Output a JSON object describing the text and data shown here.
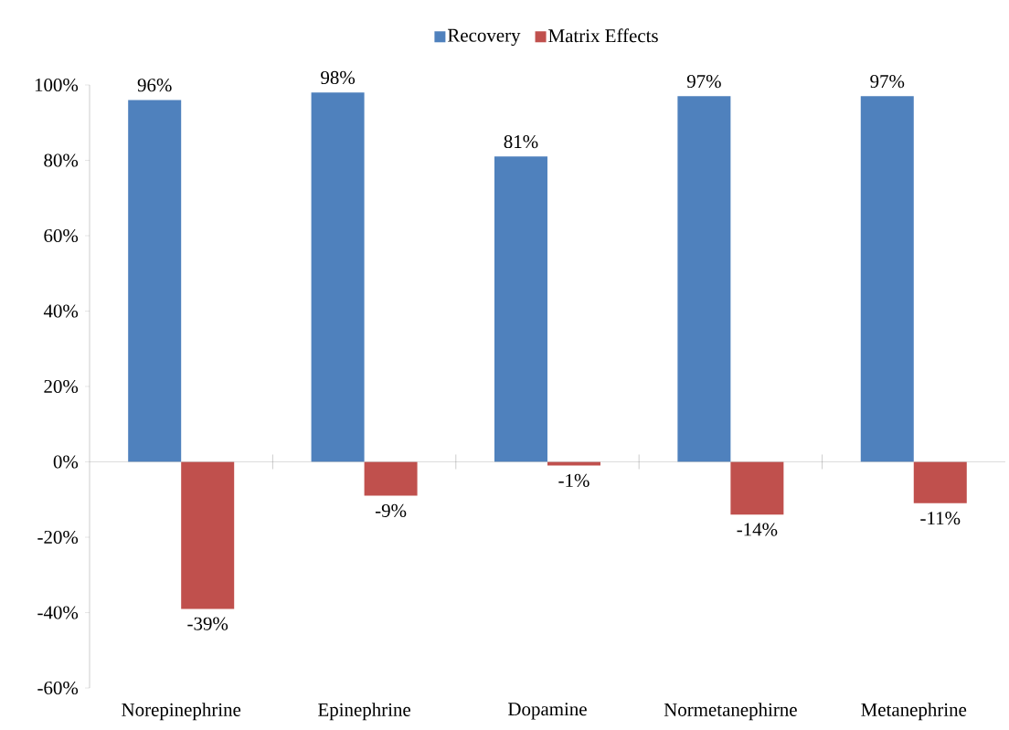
{
  "chart_data": {
    "type": "bar",
    "categories": [
      "Norepinephrine",
      "Epinephrine",
      "Dopamine",
      "Normetanephirne",
      "Metanephrine"
    ],
    "series": [
      {
        "name": "Recovery",
        "color": "#4f81bd",
        "values": [
          96,
          98,
          81,
          97,
          97
        ],
        "value_labels": [
          "96%",
          "98%",
          "81%",
          "97%",
          "97%"
        ]
      },
      {
        "name": "Matrix Effects",
        "color": "#c0504d",
        "values": [
          -39,
          -9,
          -1,
          -14,
          -11
        ],
        "value_labels": [
          "-39%",
          "-9%",
          "-1%",
          "-14%",
          "-11%"
        ]
      }
    ],
    "ylim": [
      -60,
      100
    ],
    "yticks": [
      {
        "value": -60,
        "label": "-60%"
      },
      {
        "value": -40,
        "label": "-40%"
      },
      {
        "value": -20,
        "label": "-20%"
      },
      {
        "value": 0,
        "label": "0%"
      },
      {
        "value": 20,
        "label": "20%"
      },
      {
        "value": 40,
        "label": "40%"
      },
      {
        "value": 60,
        "label": "60%"
      },
      {
        "value": 80,
        "label": "80%"
      },
      {
        "value": 100,
        "label": "100%"
      }
    ],
    "ref_lines": [
      {
        "axis": "y",
        "value": 0,
        "color": "#a6a6a6"
      }
    ],
    "grid": false,
    "legend": "top"
  }
}
